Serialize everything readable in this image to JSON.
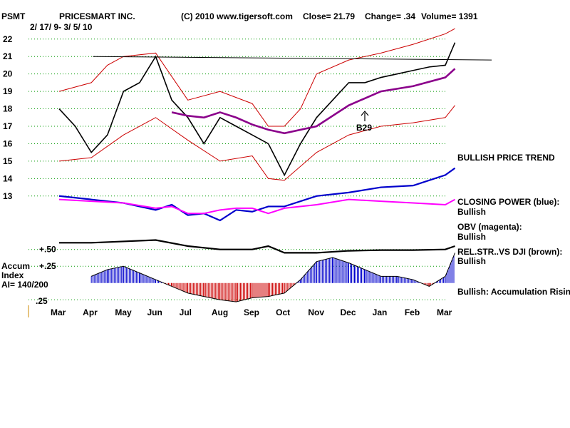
{
  "header": {
    "ticker": "PSMT",
    "company": "PRICESMART INC.",
    "copyright": "(C) 2010 www.tigersoft.com",
    "close": "Close=  21.79",
    "change": "Change= .34",
    "volume": "Volume= 1391",
    "date_range": "2/ 17/ 9- 3/ 5/ 10"
  },
  "panel_labels": {
    "accum_line1": "Accum",
    "accum_line2": "Index",
    "accum_line3": "AI= 140/200"
  },
  "annotations": {
    "marker": "B29"
  },
  "indicators": [
    {
      "title": "BULLISH PRICE TREND",
      "status": ""
    },
    {
      "title": "CLOSING POWER (blue):",
      "status": "Bullish"
    },
    {
      "title": "OBV (magenta):",
      "status": "Bullish"
    },
    {
      "title": "REL.STR..VS DJI (brown):",
      "status": "Bullish"
    },
    {
      "title": "Bullish: Accumulation Rising",
      "status": ""
    }
  ],
  "colors": {
    "price": "#000000",
    "bands": "#cc0000",
    "ma": "#8b008b",
    "closing_power": "#0000cc",
    "obv": "#ff00ff",
    "rel_str": "#000000",
    "accum_pos": "#0000cc",
    "accum_neg": "#cc0000",
    "grid": "#009900"
  },
  "chart_data": {
    "type": "line",
    "title": "PRICESMART INC.",
    "x_tick_labels": [
      "Mar",
      "Apr",
      "May",
      "Jun",
      "Jul",
      "Aug",
      "Sep",
      "Oct",
      "Nov",
      "Dec",
      "Jan",
      "Feb",
      "Mar"
    ],
    "price_axis": {
      "ticks": [
        22,
        21,
        20,
        19,
        18,
        17,
        16,
        15,
        14,
        13
      ],
      "range": [
        12.5,
        22.4
      ]
    },
    "accum_axis": {
      "ticks": [
        "+.50",
        "+.25",
        ".25"
      ],
      "range": [
        -0.3,
        0.55
      ]
    },
    "grid": true,
    "series": [
      {
        "name": "Price",
        "x": [
          0,
          0.5,
          1,
          1.5,
          2,
          2.5,
          3,
          3.5,
          4,
          4.5,
          5,
          5.5,
          6,
          6.5,
          7,
          7.5,
          8,
          8.5,
          9,
          9.5,
          10,
          10.5,
          11,
          11.5,
          12,
          12.3
        ],
        "values": [
          18,
          17,
          15.5,
          16.5,
          19,
          19.5,
          21,
          18.5,
          17.5,
          16,
          17.5,
          17,
          16.5,
          16,
          14.2,
          16,
          17.5,
          18.5,
          19.5,
          19.5,
          19.8,
          20,
          20.2,
          20.4,
          20.5,
          21.8
        ]
      },
      {
        "name": "Upper band",
        "x": [
          0,
          1,
          1.5,
          2,
          3,
          4,
          5,
          6,
          6.5,
          7,
          7.5,
          8,
          9,
          10,
          11,
          12,
          12.3
        ],
        "values": [
          19,
          19.5,
          20.5,
          21,
          21.2,
          18.5,
          19,
          18.3,
          17,
          17,
          18,
          20,
          20.8,
          21.2,
          21.7,
          22.3,
          22.6
        ]
      },
      {
        "name": "Lower band",
        "x": [
          0,
          1,
          2,
          3,
          4,
          5,
          6,
          6.5,
          7,
          8,
          9,
          10,
          11,
          12,
          12.3
        ],
        "values": [
          15,
          15.2,
          16.5,
          17.5,
          16.2,
          15,
          15.3,
          14,
          13.9,
          15.5,
          16.5,
          17,
          17.2,
          17.5,
          18.2
        ]
      },
      {
        "name": "Moving average",
        "x": [
          3.5,
          4,
          4.5,
          5,
          5.5,
          6,
          6.5,
          7,
          8,
          9,
          10,
          11,
          12,
          12.3
        ],
        "values": [
          17.8,
          17.6,
          17.5,
          17.8,
          17.5,
          17.1,
          16.8,
          16.6,
          17,
          18.2,
          19,
          19.3,
          19.8,
          20.3
        ]
      },
      {
        "name": "Closing Power",
        "x": [
          0,
          1,
          2,
          3,
          3.5,
          4,
          4.5,
          5,
          5.5,
          6,
          6.5,
          7,
          8,
          9,
          10,
          11,
          12,
          12.3
        ],
        "values": [
          14,
          13.8,
          13.6,
          13.2,
          13.5,
          12.9,
          13,
          12.6,
          13.2,
          13.1,
          13.4,
          13.4,
          14,
          14.2,
          14.5,
          14.6,
          15.2,
          15.6
        ]
      },
      {
        "name": "OBV",
        "x": [
          0,
          1,
          2,
          3,
          3.5,
          4,
          4.5,
          5,
          5.5,
          6,
          6.5,
          7,
          8,
          9,
          10,
          11,
          12,
          12.3
        ],
        "values": [
          12.4,
          12.3,
          12.2,
          11.9,
          12.0,
          11.6,
          11.6,
          11.8,
          11.9,
          11.9,
          11.6,
          11.9,
          12.1,
          12.4,
          12.3,
          12.2,
          12.1,
          12.4
        ]
      },
      {
        "name": "Rel.Str. vs DJI",
        "x": [
          0,
          1,
          2,
          3,
          4,
          5,
          6,
          6.5,
          7,
          8,
          9,
          10,
          11,
          12,
          12.3
        ],
        "values": [
          0.6,
          0.6,
          0.62,
          0.64,
          0.55,
          0.5,
          0.5,
          0.55,
          0.45,
          0.45,
          0.48,
          0.49,
          0.49,
          0.5,
          0.55
        ]
      },
      {
        "name": "Accum Index",
        "x": [
          1,
          1.5,
          2,
          2.5,
          3,
          3.5,
          4,
          4.5,
          5,
          5.5,
          6,
          6.5,
          7,
          7.5,
          8,
          8.5,
          9,
          9.5,
          10,
          10.5,
          11,
          11.5,
          12,
          12.3
        ],
        "values": [
          0.1,
          0.2,
          0.25,
          0.15,
          0.05,
          -0.05,
          -0.15,
          -0.2,
          -0.25,
          -0.28,
          -0.22,
          -0.2,
          -0.15,
          0.05,
          0.32,
          0.38,
          0.3,
          0.2,
          0.1,
          0.1,
          0.05,
          -0.05,
          0.1,
          0.45
        ]
      }
    ]
  }
}
